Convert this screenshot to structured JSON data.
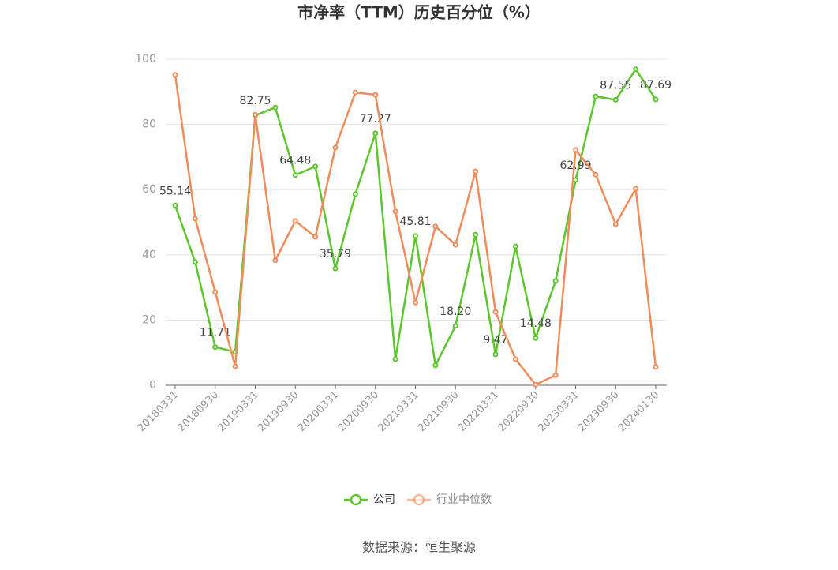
{
  "chart_data": {
    "type": "line",
    "title": "市净率（TTM）历史百分位（%）",
    "source": "数据来源：恒生聚源",
    "categories": [
      "20180331",
      null,
      "20180930",
      null,
      "20190331",
      null,
      "20190930",
      null,
      "20200331",
      null,
      "20200930",
      null,
      "20210331",
      null,
      "20210930",
      null,
      "20220331",
      null,
      "20220930",
      null,
      "20230331",
      null,
      "20230930",
      null,
      "20240130"
    ],
    "series": [
      {
        "name": "公司",
        "color": "#5cc72d",
        "values": [
          55.14,
          37.8,
          11.71,
          10.2,
          82.75,
          85.2,
          64.48,
          67.1,
          35.79,
          58.6,
          77.27,
          8.0,
          45.81,
          6.1,
          18.2,
          46.2,
          9.47,
          42.6,
          14.48,
          32.0,
          62.99,
          88.6,
          87.55,
          96.9,
          87.69
        ],
        "value_labels": [
          "55.14",
          null,
          "11.71",
          null,
          "82.75",
          null,
          "64.48",
          null,
          "35.79",
          null,
          "77.27",
          null,
          "45.81",
          null,
          "18.20",
          null,
          "9.47",
          null,
          "14.48",
          null,
          "62.99",
          null,
          "87.55",
          null,
          "87.69"
        ]
      },
      {
        "name": "行业中位数",
        "color": "#f08c5a",
        "values": [
          95.2,
          51.1,
          28.6,
          5.8,
          83.0,
          38.3,
          50.4,
          45.5,
          72.9,
          89.8,
          89.1,
          53.3,
          25.4,
          48.7,
          43.1,
          65.6,
          22.5,
          8.0,
          0.2,
          3.1,
          72.2,
          64.6,
          49.4,
          60.3,
          5.6
        ]
      }
    ],
    "ylim": [
      0,
      100
    ],
    "yticks": [
      0,
      20,
      40,
      60,
      80,
      100
    ],
    "grid": true
  }
}
